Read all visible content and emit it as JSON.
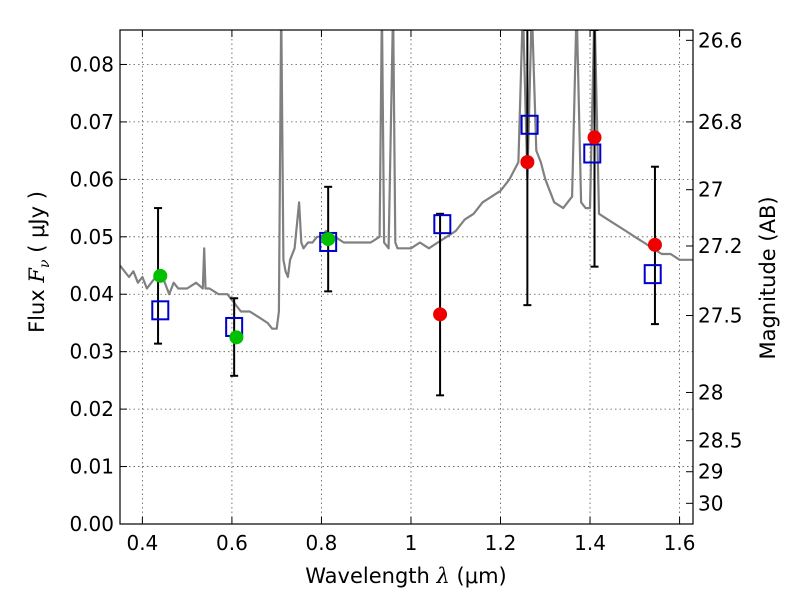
{
  "chart_data": {
    "type": "scatter",
    "xlabel_text": "Wavelength",
    "xlabel_symbol": "λ",
    "xlabel_unit": "(μm)",
    "ylabel_text": "Flux",
    "ylabel_symbol": "F",
    "ylabel_symbol_sub": "ν",
    "ylabel_unit": "( μJy )",
    "y2label": "Magnitude (AB)",
    "xlim": [
      0.35,
      1.63
    ],
    "ylim": [
      0.0,
      0.086
    ],
    "grid": true,
    "x_ticks": [
      {
        "value": 0.4,
        "label": "0.4"
      },
      {
        "value": 0.6,
        "label": "0.6"
      },
      {
        "value": 0.8,
        "label": "0.8"
      },
      {
        "value": 1.0,
        "label": "1"
      },
      {
        "value": 1.2,
        "label": "1.2"
      },
      {
        "value": 1.4,
        "label": "1.4"
      },
      {
        "value": 1.6,
        "label": "1.6"
      }
    ],
    "y_ticks": [
      {
        "value": 0.0,
        "label": "0.00"
      },
      {
        "value": 0.01,
        "label": "0.01"
      },
      {
        "value": 0.02,
        "label": "0.02"
      },
      {
        "value": 0.03,
        "label": "0.03"
      },
      {
        "value": 0.04,
        "label": "0.04"
      },
      {
        "value": 0.05,
        "label": "0.05"
      },
      {
        "value": 0.06,
        "label": "0.06"
      },
      {
        "value": 0.07,
        "label": "0.07"
      },
      {
        "value": 0.08,
        "label": "0.08"
      }
    ],
    "y2_ticks": [
      {
        "flux": 0.0842,
        "label": "26.6"
      },
      {
        "flux": 0.07,
        "label": "26.8"
      },
      {
        "flux": 0.0582,
        "label": "27"
      },
      {
        "flux": 0.0484,
        "label": "27.2"
      },
      {
        "flux": 0.0363,
        "label": "27.5"
      },
      {
        "flux": 0.0229,
        "label": "28"
      },
      {
        "flux": 0.0145,
        "label": "28.5"
      },
      {
        "flux": 0.0091,
        "label": "29"
      },
      {
        "flux": 0.0036,
        "label": "30"
      }
    ],
    "colors": {
      "spectrum": "#808080",
      "model_squares": "#0000cc",
      "detections_green": "#00c000",
      "detections_red": "#ee0000",
      "errorbars": "#000000",
      "grid": "#555555"
    },
    "series": [
      {
        "type": "line",
        "color": "#808080",
        "x": [
          0.35,
          0.36,
          0.37,
          0.38,
          0.39,
          0.4,
          0.41,
          0.42,
          0.43,
          0.44,
          0.45,
          0.46,
          0.47,
          0.48,
          0.49,
          0.5,
          0.52,
          0.535,
          0.538,
          0.541,
          0.55,
          0.57,
          0.59,
          0.6,
          0.62,
          0.64,
          0.66,
          0.68,
          0.69,
          0.7,
          0.705,
          0.71,
          0.715,
          0.72,
          0.725,
          0.73,
          0.74,
          0.75,
          0.755,
          0.76,
          0.77,
          0.78,
          0.79,
          0.8,
          0.81,
          0.83,
          0.85,
          0.87,
          0.89,
          0.91,
          0.93,
          0.935,
          0.94,
          0.95,
          0.96,
          0.965,
          0.97,
          0.98,
          1.0,
          1.02,
          1.04,
          1.06,
          1.08,
          1.1,
          1.12,
          1.14,
          1.16,
          1.18,
          1.2,
          1.22,
          1.24,
          1.25,
          1.26,
          1.27,
          1.28,
          1.29,
          1.3,
          1.32,
          1.34,
          1.36,
          1.37,
          1.38,
          1.39,
          1.4,
          1.41,
          1.42,
          1.44,
          1.46,
          1.48,
          1.5,
          1.52,
          1.54,
          1.56,
          1.58,
          1.6,
          1.63
        ],
        "values": [
          0.045,
          0.044,
          0.043,
          0.044,
          0.042,
          0.043,
          0.041,
          0.042,
          0.043,
          0.044,
          0.042,
          0.04,
          0.042,
          0.041,
          0.041,
          0.041,
          0.042,
          0.041,
          0.048,
          0.041,
          0.041,
          0.04,
          0.04,
          0.039,
          0.037,
          0.037,
          0.036,
          0.035,
          0.034,
          0.034,
          0.037,
          0.09,
          0.046,
          0.044,
          0.043,
          0.046,
          0.048,
          0.056,
          0.049,
          0.048,
          0.049,
          0.049,
          0.05,
          0.05,
          0.051,
          0.05,
          0.049,
          0.049,
          0.049,
          0.049,
          0.05,
          0.09,
          0.049,
          0.048,
          0.09,
          0.049,
          0.048,
          0.048,
          0.048,
          0.049,
          0.048,
          0.049,
          0.05,
          0.051,
          0.053,
          0.054,
          0.056,
          0.057,
          0.058,
          0.06,
          0.063,
          0.09,
          0.06,
          0.09,
          0.065,
          0.063,
          0.06,
          0.056,
          0.055,
          0.057,
          0.09,
          0.056,
          0.055,
          0.055,
          0.09,
          0.054,
          0.053,
          0.052,
          0.051,
          0.05,
          0.049,
          0.048,
          0.047,
          0.047,
          0.046,
          0.046
        ]
      },
      {
        "type": "errorbar",
        "color": "#000000",
        "x": [
          0.435,
          0.605,
          0.815,
          1.065,
          1.26,
          1.41,
          1.545
        ],
        "low": [
          0.0314,
          0.0258,
          0.0405,
          0.0224,
          0.0381,
          0.0448,
          0.0348
        ],
        "high": [
          0.055,
          0.0393,
          0.0587,
          0.054,
          0.086,
          0.086,
          0.0622
        ]
      },
      {
        "type": "scatter",
        "marker": "square",
        "color": "#0000cc",
        "x": [
          0.44,
          0.605,
          0.815,
          1.07,
          1.265,
          1.405,
          1.54
        ],
        "values": [
          0.0372,
          0.0343,
          0.0491,
          0.0522,
          0.0695,
          0.0645,
          0.0435
        ]
      },
      {
        "type": "scatter",
        "marker": "circle",
        "color": "#00c000",
        "x": [
          0.44,
          0.61,
          0.815
        ],
        "values": [
          0.0432,
          0.0325,
          0.0496
        ]
      },
      {
        "type": "scatter",
        "marker": "circle",
        "color": "#ee0000",
        "x": [
          1.065,
          1.26,
          1.41,
          1.545
        ],
        "values": [
          0.0365,
          0.063,
          0.0673,
          0.0486
        ]
      }
    ]
  }
}
